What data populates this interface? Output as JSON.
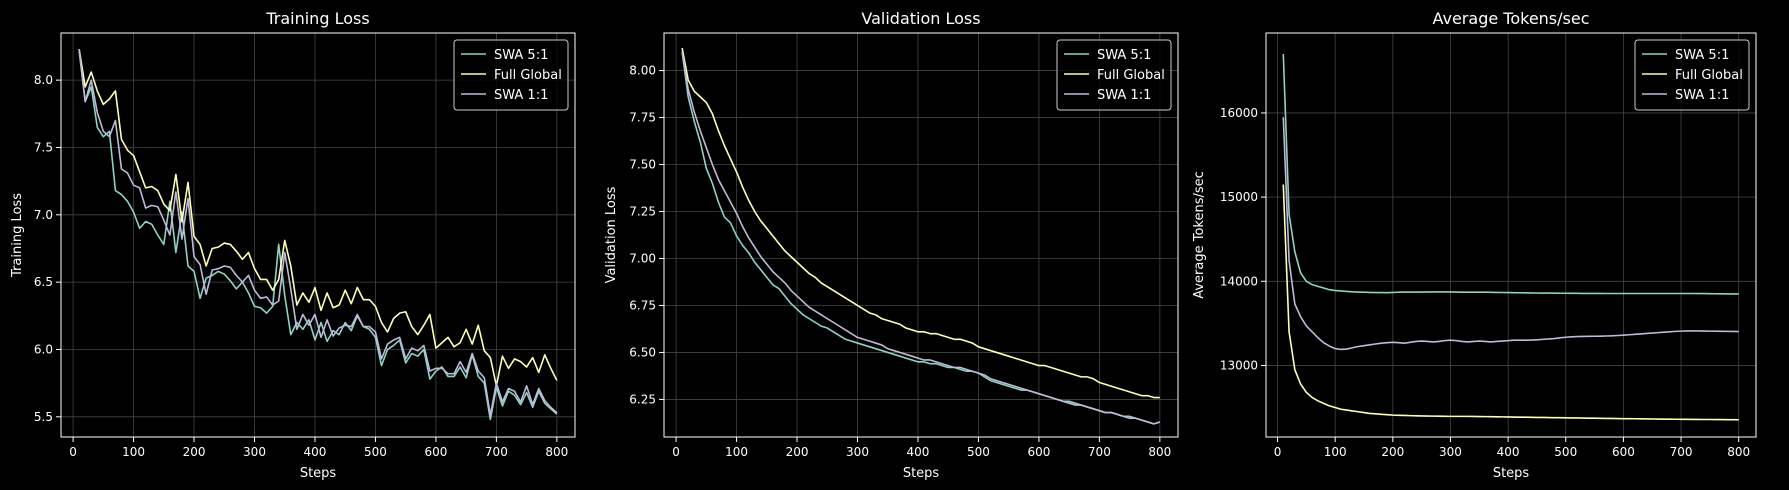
{
  "figure": {
    "background": "#000000",
    "grid_color": "#444444",
    "axes_color": "#ffffff"
  },
  "chart_data": [
    {
      "type": "line",
      "title": "Training Loss",
      "xlabel": "Steps",
      "ylabel": "Training Loss",
      "xlim": [
        -20,
        830
      ],
      "ylim": [
        5.35,
        8.35
      ],
      "xticks": [
        0,
        100,
        200,
        300,
        400,
        500,
        600,
        700,
        800
      ],
      "yticks": [
        5.5,
        6.0,
        6.5,
        7.0,
        7.5,
        8.0
      ],
      "ytick_labels": [
        "5.5",
        "6.0",
        "6.5",
        "7.0",
        "7.5",
        "8.0"
      ],
      "grid": true,
      "legend": "top-right",
      "x": [
        10,
        20,
        30,
        40,
        50,
        60,
        70,
        80,
        90,
        100,
        110,
        120,
        130,
        140,
        150,
        160,
        170,
        180,
        190,
        200,
        210,
        220,
        230,
        240,
        250,
        260,
        270,
        280,
        290,
        300,
        310,
        320,
        330,
        340,
        350,
        360,
        370,
        380,
        390,
        400,
        410,
        420,
        430,
        440,
        450,
        460,
        470,
        480,
        490,
        500,
        510,
        520,
        530,
        540,
        550,
        560,
        570,
        580,
        590,
        600,
        610,
        620,
        630,
        640,
        650,
        660,
        670,
        680,
        690,
        700,
        710,
        720,
        730,
        740,
        750,
        760,
        770,
        780,
        790,
        800
      ],
      "series": [
        {
          "name": "SWA 5:1",
          "color": "#8dd3c7",
          "values": [
            8.22,
            7.84,
            7.95,
            7.65,
            7.58,
            7.62,
            7.18,
            7.15,
            7.1,
            7.02,
            6.9,
            6.95,
            6.93,
            6.85,
            6.78,
            7.1,
            6.72,
            7.02,
            6.62,
            6.58,
            6.38,
            6.53,
            6.55,
            6.58,
            6.56,
            6.51,
            6.45,
            6.5,
            6.42,
            6.32,
            6.31,
            6.27,
            6.32,
            6.78,
            6.4,
            6.11,
            6.2,
            6.15,
            6.22,
            6.07,
            6.2,
            6.06,
            6.14,
            6.11,
            6.2,
            6.14,
            6.25,
            6.17,
            6.15,
            6.09,
            5.88,
            6.0,
            6.03,
            6.07,
            5.9,
            5.97,
            5.95,
            6.0,
            5.78,
            5.84,
            5.87,
            5.8,
            5.8,
            5.87,
            5.79,
            5.96,
            5.8,
            5.75,
            5.48,
            5.72,
            5.58,
            5.69,
            5.66,
            5.59,
            5.68,
            5.57,
            5.69,
            5.6,
            5.56,
            5.52
          ]
        },
        {
          "name": "Full Global",
          "color": "#ffffb3",
          "values": [
            8.23,
            7.95,
            8.06,
            7.92,
            7.82,
            7.86,
            7.92,
            7.56,
            7.48,
            7.44,
            7.32,
            7.2,
            7.21,
            7.18,
            7.08,
            7.03,
            7.3,
            6.95,
            7.24,
            6.84,
            6.78,
            6.62,
            6.75,
            6.76,
            6.79,
            6.78,
            6.73,
            6.67,
            6.72,
            6.6,
            6.52,
            6.52,
            6.44,
            6.52,
            6.81,
            6.62,
            6.33,
            6.42,
            6.35,
            6.46,
            6.29,
            6.42,
            6.31,
            6.33,
            6.44,
            6.34,
            6.46,
            6.37,
            6.37,
            6.32,
            6.2,
            6.13,
            6.23,
            6.27,
            6.28,
            6.17,
            6.11,
            6.18,
            6.26,
            6.01,
            6.05,
            6.09,
            6.02,
            6.05,
            6.15,
            6.04,
            6.18,
            5.99,
            5.94,
            5.73,
            5.95,
            5.86,
            5.93,
            5.91,
            5.87,
            5.94,
            5.83,
            5.96,
            5.86,
            5.77
          ]
        },
        {
          "name": "SWA 1:1",
          "color": "#bebada",
          "values": [
            8.23,
            7.84,
            8.0,
            7.76,
            7.62,
            7.58,
            7.7,
            7.34,
            7.31,
            7.22,
            7.2,
            7.05,
            7.07,
            7.06,
            6.96,
            6.85,
            7.17,
            6.82,
            7.12,
            6.69,
            6.63,
            6.41,
            6.59,
            6.6,
            6.62,
            6.61,
            6.55,
            6.5,
            6.55,
            6.44,
            6.38,
            6.39,
            6.33,
            6.36,
            6.72,
            6.45,
            6.15,
            6.26,
            6.18,
            6.26,
            6.09,
            6.22,
            6.1,
            6.16,
            6.18,
            6.17,
            6.26,
            6.17,
            6.17,
            6.13,
            5.93,
            6.04,
            6.07,
            6.09,
            5.93,
            6.01,
            5.99,
            6.03,
            5.84,
            5.86,
            5.86,
            5.82,
            5.82,
            5.91,
            5.83,
            5.97,
            5.84,
            5.79,
            5.51,
            5.75,
            5.61,
            5.71,
            5.69,
            5.61,
            5.73,
            5.59,
            5.71,
            5.62,
            5.57,
            5.53
          ]
        }
      ]
    },
    {
      "type": "line",
      "title": "Validation Loss",
      "xlabel": "Steps",
      "ylabel": "Validation Loss",
      "xlim": [
        -20,
        830
      ],
      "ylim": [
        6.05,
        8.2
      ],
      "xticks": [
        0,
        100,
        200,
        300,
        400,
        500,
        600,
        700,
        800
      ],
      "yticks": [
        6.25,
        6.5,
        6.75,
        7.0,
        7.25,
        7.5,
        7.75,
        8.0
      ],
      "ytick_labels": [
        "6.25",
        "6.50",
        "6.75",
        "7.00",
        "7.25",
        "7.50",
        "7.75",
        "8.00"
      ],
      "grid": true,
      "legend": "top-right",
      "x": [
        10,
        20,
        30,
        40,
        50,
        60,
        70,
        80,
        90,
        100,
        110,
        120,
        130,
        140,
        150,
        160,
        170,
        180,
        190,
        200,
        210,
        220,
        230,
        240,
        250,
        260,
        270,
        280,
        290,
        300,
        310,
        320,
        330,
        340,
        350,
        360,
        370,
        380,
        390,
        400,
        410,
        420,
        430,
        440,
        450,
        460,
        470,
        480,
        490,
        500,
        510,
        520,
        530,
        540,
        550,
        560,
        570,
        580,
        590,
        600,
        610,
        620,
        630,
        640,
        650,
        660,
        670,
        680,
        690,
        700,
        710,
        720,
        730,
        740,
        750,
        760,
        770,
        780,
        790,
        800
      ],
      "series": [
        {
          "name": "SWA 5:1",
          "color": "#8dd3c7",
          "values": [
            8.1,
            7.86,
            7.73,
            7.62,
            7.48,
            7.4,
            7.3,
            7.22,
            7.19,
            7.12,
            7.07,
            7.03,
            6.98,
            6.94,
            6.9,
            6.86,
            6.84,
            6.8,
            6.76,
            6.73,
            6.7,
            6.68,
            6.66,
            6.64,
            6.63,
            6.61,
            6.59,
            6.57,
            6.56,
            6.55,
            6.54,
            6.53,
            6.52,
            6.51,
            6.5,
            6.49,
            6.48,
            6.47,
            6.46,
            6.45,
            6.45,
            6.44,
            6.44,
            6.43,
            6.42,
            6.42,
            6.41,
            6.4,
            6.4,
            6.39,
            6.37,
            6.35,
            6.34,
            6.33,
            6.32,
            6.31,
            6.3,
            6.3,
            6.29,
            6.28,
            6.27,
            6.26,
            6.25,
            6.24,
            6.24,
            6.23,
            6.22,
            6.21,
            6.2,
            6.19,
            6.18,
            6.18,
            6.17,
            6.16,
            6.16,
            6.15,
            6.14,
            6.13,
            6.12,
            6.13
          ]
        },
        {
          "name": "Full Global",
          "color": "#ffffb3",
          "values": [
            8.12,
            7.95,
            7.89,
            7.86,
            7.83,
            7.77,
            7.68,
            7.6,
            7.53,
            7.46,
            7.38,
            7.31,
            7.25,
            7.2,
            7.16,
            7.12,
            7.08,
            7.04,
            7.01,
            6.98,
            6.95,
            6.92,
            6.9,
            6.87,
            6.85,
            6.83,
            6.81,
            6.79,
            6.77,
            6.75,
            6.73,
            6.71,
            6.7,
            6.68,
            6.67,
            6.66,
            6.65,
            6.63,
            6.62,
            6.61,
            6.61,
            6.6,
            6.6,
            6.59,
            6.58,
            6.57,
            6.57,
            6.56,
            6.55,
            6.53,
            6.52,
            6.51,
            6.5,
            6.49,
            6.48,
            6.47,
            6.46,
            6.45,
            6.44,
            6.43,
            6.43,
            6.42,
            6.41,
            6.4,
            6.39,
            6.38,
            6.37,
            6.37,
            6.36,
            6.34,
            6.33,
            6.32,
            6.31,
            6.3,
            6.29,
            6.28,
            6.27,
            6.27,
            6.26,
            6.26
          ]
        },
        {
          "name": "SWA 1:1",
          "color": "#bebada",
          "values": [
            8.1,
            7.9,
            7.78,
            7.68,
            7.59,
            7.5,
            7.42,
            7.36,
            7.3,
            7.24,
            7.17,
            7.11,
            7.06,
            7.01,
            6.97,
            6.93,
            6.9,
            6.87,
            6.83,
            6.8,
            6.77,
            6.74,
            6.72,
            6.7,
            6.68,
            6.66,
            6.64,
            6.62,
            6.6,
            6.58,
            6.57,
            6.56,
            6.55,
            6.54,
            6.52,
            6.51,
            6.5,
            6.49,
            6.48,
            6.47,
            6.46,
            6.46,
            6.45,
            6.44,
            6.43,
            6.42,
            6.42,
            6.41,
            6.4,
            6.39,
            6.38,
            6.36,
            6.35,
            6.34,
            6.33,
            6.32,
            6.31,
            6.3,
            6.29,
            6.28,
            6.27,
            6.26,
            6.25,
            6.24,
            6.23,
            6.22,
            6.22,
            6.21,
            6.2,
            6.19,
            6.18,
            6.18,
            6.17,
            6.16,
            6.15,
            6.15,
            6.14,
            6.13,
            6.12,
            6.13
          ]
        }
      ]
    },
    {
      "type": "line",
      "title": "Average Tokens/sec",
      "xlabel": "Steps",
      "ylabel": "Average Tokens/sec",
      "xlim": [
        -20,
        830
      ],
      "ylim": [
        12150,
        16950
      ],
      "xticks": [
        0,
        100,
        200,
        300,
        400,
        500,
        600,
        700,
        800
      ],
      "yticks": [
        13000,
        14000,
        15000,
        16000
      ],
      "ytick_labels": [
        "13000",
        "14000",
        "15000",
        "16000"
      ],
      "grid": true,
      "legend": "top-right",
      "x": [
        10,
        20,
        30,
        40,
        50,
        60,
        70,
        80,
        90,
        100,
        110,
        120,
        130,
        140,
        150,
        160,
        170,
        180,
        190,
        200,
        210,
        220,
        230,
        240,
        250,
        260,
        270,
        280,
        290,
        300,
        310,
        320,
        330,
        340,
        350,
        360,
        370,
        380,
        390,
        400,
        410,
        420,
        430,
        440,
        450,
        460,
        470,
        480,
        490,
        500,
        510,
        520,
        530,
        540,
        550,
        560,
        570,
        580,
        590,
        600,
        610,
        620,
        630,
        640,
        650,
        660,
        670,
        680,
        690,
        700,
        710,
        720,
        730,
        740,
        750,
        760,
        770,
        780,
        790,
        800
      ],
      "series": [
        {
          "name": "SWA 5:1",
          "color": "#8dd3c7",
          "values": [
            16700,
            14800,
            14350,
            14100,
            14000,
            13960,
            13940,
            13920,
            13900,
            13890,
            13885,
            13880,
            13875,
            13872,
            13870,
            13868,
            13866,
            13866,
            13865,
            13868,
            13870,
            13872,
            13872,
            13872,
            13872,
            13873,
            13874,
            13874,
            13874,
            13873,
            13872,
            13871,
            13871,
            13870,
            13870,
            13870,
            13869,
            13868,
            13867,
            13866,
            13865,
            13864,
            13863,
            13862,
            13861,
            13860,
            13860,
            13859,
            13858,
            13858,
            13857,
            13857,
            13856,
            13856,
            13856,
            13856,
            13855,
            13855,
            13855,
            13855,
            13855,
            13855,
            13855,
            13855,
            13855,
            13855,
            13855,
            13855,
            13855,
            13855,
            13855,
            13855,
            13854,
            13854,
            13853,
            13852,
            13851,
            13850,
            13850,
            13850
          ]
        },
        {
          "name": "Full Global",
          "color": "#ffffb3",
          "values": [
            15150,
            13400,
            12950,
            12780,
            12680,
            12620,
            12580,
            12550,
            12520,
            12500,
            12480,
            12470,
            12460,
            12450,
            12440,
            12430,
            12425,
            12420,
            12415,
            12410,
            12408,
            12406,
            12404,
            12402,
            12400,
            12399,
            12398,
            12397,
            12396,
            12395,
            12395,
            12395,
            12395,
            12394,
            12393,
            12392,
            12391,
            12390,
            12389,
            12388,
            12387,
            12386,
            12385,
            12384,
            12383,
            12382,
            12381,
            12380,
            12379,
            12378,
            12377,
            12376,
            12375,
            12374,
            12373,
            12372,
            12371,
            12370,
            12369,
            12368,
            12368,
            12367,
            12366,
            12365,
            12364,
            12363,
            12362,
            12362,
            12361,
            12360,
            12360,
            12359,
            12359,
            12358,
            12358,
            12357,
            12357,
            12356,
            12356,
            12355
          ]
        },
        {
          "name": "SWA 1:1",
          "color": "#bebada",
          "values": [
            15950,
            14250,
            13730,
            13580,
            13470,
            13400,
            13330,
            13270,
            13230,
            13200,
            13190,
            13195,
            13210,
            13225,
            13235,
            13245,
            13255,
            13265,
            13270,
            13275,
            13270,
            13265,
            13275,
            13285,
            13290,
            13285,
            13280,
            13285,
            13295,
            13300,
            13295,
            13285,
            13280,
            13285,
            13290,
            13285,
            13280,
            13285,
            13290,
            13295,
            13300,
            13300,
            13300,
            13302,
            13305,
            13310,
            13315,
            13320,
            13328,
            13335,
            13340,
            13343,
            13345,
            13346,
            13347,
            13348,
            13350,
            13352,
            13356,
            13360,
            13365,
            13370,
            13375,
            13380,
            13385,
            13390,
            13395,
            13400,
            13405,
            13408,
            13410,
            13410,
            13410,
            13409,
            13408,
            13407,
            13406,
            13405,
            13404,
            13403
          ]
        }
      ]
    }
  ]
}
